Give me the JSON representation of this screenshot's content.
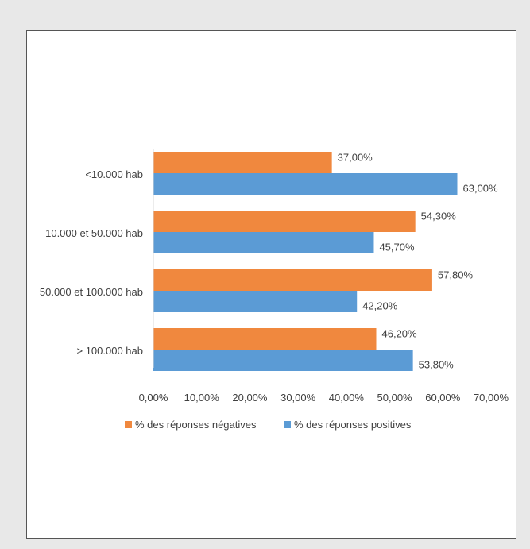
{
  "chart_data": {
    "type": "bar",
    "orientation": "horizontal",
    "categories": [
      "<10.000 hab",
      "10.000 et 50.000 hab",
      "50.000 et 100.000 hab",
      "> 100.000 hab"
    ],
    "series": [
      {
        "name": "% des réponses négatives",
        "color": "#f0883e",
        "values": [
          37.0,
          54.3,
          57.8,
          46.2
        ],
        "labels": [
          "37,00%",
          "54,30%",
          "57,80%",
          "46,20%"
        ]
      },
      {
        "name": "% des réponses positives",
        "color": "#5b9bd5",
        "values": [
          63.0,
          45.7,
          42.2,
          53.8
        ],
        "labels": [
          "63,00%",
          "45,70%",
          "42,20%",
          "53,80%"
        ]
      }
    ],
    "xticks": [
      "0,00%",
      "10,00%",
      "20,00%",
      "30,00%",
      "40,00%",
      "50,00%",
      "60,00%",
      "70,00%"
    ],
    "xlim": [
      0,
      70
    ],
    "grid": false,
    "legend_position": "bottom"
  }
}
